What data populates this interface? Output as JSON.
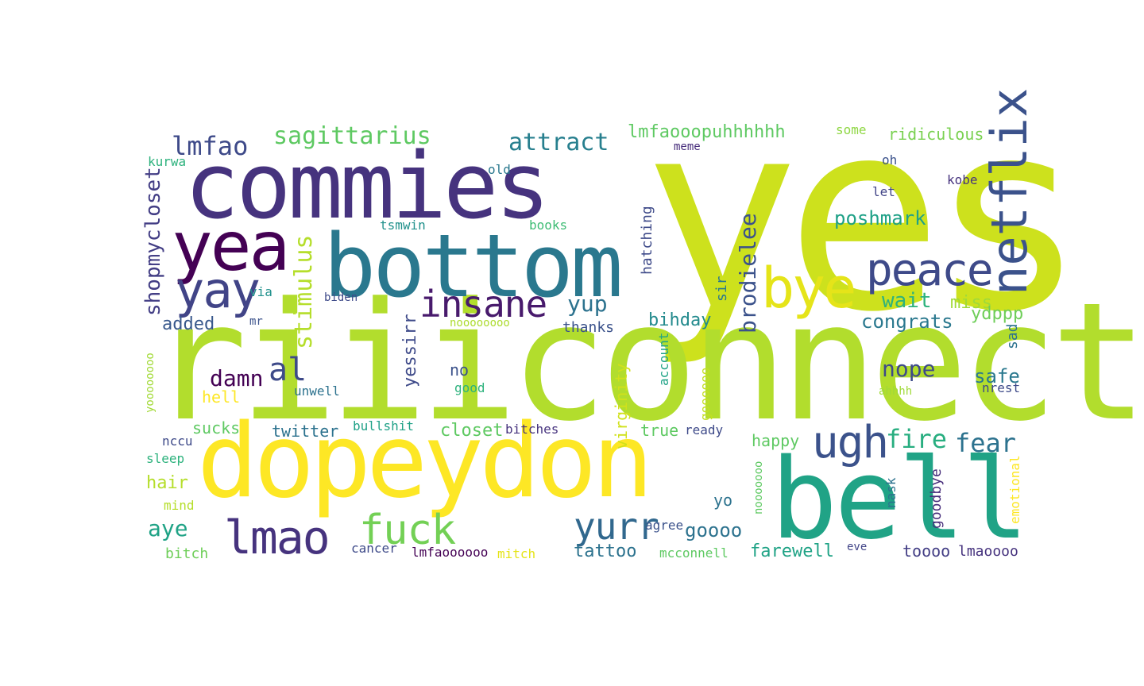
{
  "words": [
    {
      "text": "yes",
      "color": "#cde11d"
    },
    {
      "text": "riiiconnect",
      "color": "#b2dd2d"
    },
    {
      "text": "commies",
      "color": "#46337e"
    },
    {
      "text": "dopeydon",
      "color": "#fde725"
    },
    {
      "text": "bottom",
      "color": "#2a788e"
    },
    {
      "text": "bell",
      "color": "#20a386"
    },
    {
      "text": "yea",
      "color": "#440154"
    },
    {
      "text": "netflix",
      "color": "#3b528b"
    },
    {
      "text": "peace",
      "color": "#3e4a89"
    },
    {
      "text": "bye",
      "color": "#e5e419"
    },
    {
      "text": "yay",
      "color": "#414487"
    },
    {
      "text": "insane",
      "color": "#481a6c"
    },
    {
      "text": "ugh",
      "color": "#3b528b"
    },
    {
      "text": "lmao",
      "color": "#46337e"
    },
    {
      "text": "fuck",
      "color": "#73d055"
    },
    {
      "text": "yurr",
      "color": "#31688e"
    },
    {
      "text": "lmfao",
      "color": "#3e4a89"
    },
    {
      "text": "sagittarius",
      "color": "#5ec962"
    },
    {
      "text": "attract",
      "color": "#277f8e"
    },
    {
      "text": "lmfaooopuhhhhhh",
      "color": "#5ec962"
    },
    {
      "text": "stimulus",
      "color": "#b5de2b"
    },
    {
      "text": "shopmycloset",
      "color": "#433e85"
    },
    {
      "text": "brodielee",
      "color": "#3b528b"
    },
    {
      "text": "poshmark",
      "color": "#1fa187"
    },
    {
      "text": "wait",
      "color": "#2db27d"
    },
    {
      "text": "miss",
      "color": "#a0da39"
    },
    {
      "text": "congrats",
      "color": "#2a788e"
    },
    {
      "text": "ydppp",
      "color": "#6ece58"
    },
    {
      "text": "nope",
      "color": "#3e4a89"
    },
    {
      "text": "damn",
      "color": "#440154"
    },
    {
      "text": "al",
      "color": "#3e4a89"
    },
    {
      "text": "yup",
      "color": "#2c728e"
    },
    {
      "text": "added",
      "color": "#38588c"
    },
    {
      "text": "bihday",
      "color": "#238a8d"
    },
    {
      "text": "thanks",
      "color": "#3b528b"
    },
    {
      "text": "yessirr",
      "color": "#3e4a89"
    },
    {
      "text": "fire",
      "color": "#28ae80"
    },
    {
      "text": "fear",
      "color": "#2c728e"
    },
    {
      "text": "safe",
      "color": "#2a788e"
    },
    {
      "text": "nrest",
      "color": "#3e4a89"
    },
    {
      "text": "sad",
      "color": "#2c728e"
    },
    {
      "text": "ridiculous",
      "color": "#7ad151"
    },
    {
      "text": "some",
      "color": "#8fd744"
    },
    {
      "text": "oh",
      "color": "#3b528b"
    },
    {
      "text": "let",
      "color": "#414487"
    },
    {
      "text": "kobe",
      "color": "#46337e"
    },
    {
      "text": "meme",
      "color": "#472d7b"
    },
    {
      "text": "kurwa",
      "color": "#2db27d"
    },
    {
      "text": "old",
      "color": "#2a788e"
    },
    {
      "text": "tsmwin",
      "color": "#21918c"
    },
    {
      "text": "books",
      "color": "#3dbc74"
    },
    {
      "text": "hatching",
      "color": "#3e4a89"
    },
    {
      "text": "sir",
      "color": "#2a788e"
    },
    {
      "text": "biden",
      "color": "#3e4a89"
    },
    {
      "text": "via",
      "color": "#21918c"
    },
    {
      "text": "mr",
      "color": "#3b528b"
    },
    {
      "text": "noooooooo",
      "color": "#addc30"
    },
    {
      "text": "no",
      "color": "#3b528b"
    },
    {
      "text": "good",
      "color": "#2db27d"
    },
    {
      "text": "account",
      "color": "#20a386"
    },
    {
      "text": "goooooo",
      "color": "#c2df23"
    },
    {
      "text": "virginity",
      "color": "#d0e11c"
    },
    {
      "text": "hell",
      "color": "#fde725"
    },
    {
      "text": "unwell",
      "color": "#2c728e"
    },
    {
      "text": "yoooooooo",
      "color": "#a2da37"
    },
    {
      "text": "sucks",
      "color": "#5ec962"
    },
    {
      "text": "twitter",
      "color": "#2c728e"
    },
    {
      "text": "bullshit",
      "color": "#1fa187"
    },
    {
      "text": "closet",
      "color": "#5ec962"
    },
    {
      "text": "bitches",
      "color": "#46337e"
    },
    {
      "text": "true",
      "color": "#5ec962"
    },
    {
      "text": "ready",
      "color": "#3e4a89"
    },
    {
      "text": "happy",
      "color": "#5ec962"
    },
    {
      "text": "goodbye",
      "color": "#472d7b"
    },
    {
      "text": "nask",
      "color": "#2c728e"
    },
    {
      "text": "emotional",
      "color": "#fde725"
    },
    {
      "text": "nooooooo",
      "color": "#5ec962"
    },
    {
      "text": "nccu",
      "color": "#3e4a89"
    },
    {
      "text": "sleep",
      "color": "#2db27d"
    },
    {
      "text": "hair",
      "color": "#b5de2b"
    },
    {
      "text": "mind",
      "color": "#b5de2b"
    },
    {
      "text": "aye",
      "color": "#20a386"
    },
    {
      "text": "bitch",
      "color": "#6ece58"
    },
    {
      "text": "cancer",
      "color": "#3e4a89"
    },
    {
      "text": "lmfaoooooo",
      "color": "#440154"
    },
    {
      "text": "mitch",
      "color": "#e5e419"
    },
    {
      "text": "tattoo",
      "color": "#2c728e"
    },
    {
      "text": "mcconnell",
      "color": "#5ec962"
    },
    {
      "text": "farewell",
      "color": "#20a386"
    },
    {
      "text": "agree",
      "color": "#3b528b"
    },
    {
      "text": "goooo",
      "color": "#2c728e"
    },
    {
      "text": "yo",
      "color": "#2c728e"
    },
    {
      "text": "eve",
      "color": "#414487"
    },
    {
      "text": "toooo",
      "color": "#433e85"
    },
    {
      "text": "lmaoooo",
      "color": "#46337e"
    },
    {
      "text": "ahhhh",
      "color": "#a0da39"
    },
    {
      "text": "kobe",
      "color": "#46337e"
    }
  ]
}
